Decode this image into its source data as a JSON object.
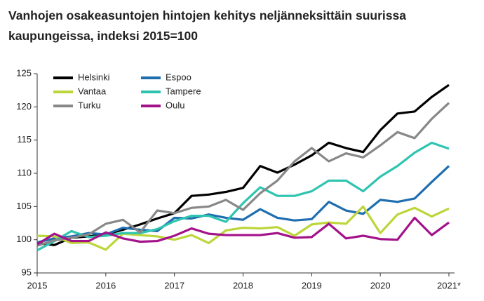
{
  "chart_data": {
    "type": "line",
    "title": "Vanhojen osakeasuntojen hintojen kehitys neljänneksittäin suurissa kaupungeissa, indeksi 2015=100",
    "categories": [
      "2015",
      null,
      null,
      null,
      "2016",
      null,
      null,
      null,
      "2017",
      null,
      null,
      null,
      "2018",
      null,
      null,
      null,
      "2019",
      null,
      null,
      null,
      "2020",
      null,
      null,
      null,
      "2021*"
    ],
    "ylim": [
      95,
      125
    ],
    "yticks": [
      95,
      100,
      105,
      110,
      115,
      120,
      125
    ],
    "grid": false,
    "legend": "upper-left",
    "series": [
      {
        "name": "Helsinki",
        "color": "#000000",
        "values": [
          99.5,
          99.2,
          100.3,
          100.5,
          100.8,
          101.5,
          102.3,
          103.2,
          104.0,
          106.6,
          106.8,
          107.2,
          107.8,
          111.1,
          110.1,
          111.3,
          112.7,
          114.6,
          113.8,
          113.2,
          116.5,
          119.0,
          119.3,
          121.5,
          123.3
        ]
      },
      {
        "name": "Espoo",
        "color": "#1f6eb0",
        "values": [
          99.6,
          100.2,
          100.5,
          101.0,
          100.8,
          101.8,
          101.5,
          101.3,
          103.3,
          103.2,
          103.8,
          103.3,
          103.0,
          104.6,
          103.3,
          102.9,
          103.1,
          105.7,
          104.4,
          103.9,
          106.0,
          105.7,
          106.2,
          108.7,
          111.1
        ]
      },
      {
        "name": "Vantaa",
        "color": "#bcd63a",
        "values": [
          100.6,
          100.5,
          99.5,
          99.6,
          98.5,
          100.9,
          100.7,
          100.5,
          100.0,
          100.7,
          99.5,
          101.4,
          101.8,
          101.7,
          101.9,
          100.6,
          102.3,
          102.6,
          102.4,
          105.0,
          101.0,
          103.8,
          104.8,
          103.5,
          104.7
        ]
      },
      {
        "name": "Tampere",
        "color": "#2ec4b0",
        "values": [
          98.4,
          99.8,
          101.3,
          100.4,
          100.6,
          101.0,
          101.0,
          101.6,
          102.8,
          103.6,
          103.6,
          102.7,
          105.5,
          107.9,
          106.6,
          106.6,
          107.3,
          108.9,
          108.9,
          107.3,
          109.5,
          111.1,
          113.1,
          114.6,
          113.7
        ]
      },
      {
        "name": "Turku",
        "color": "#888888",
        "values": [
          99.1,
          99.9,
          100.3,
          100.8,
          102.4,
          103.0,
          101.1,
          104.4,
          104.0,
          104.8,
          105.0,
          106.0,
          104.5,
          107.0,
          108.9,
          111.8,
          113.8,
          111.8,
          113.0,
          112.4,
          114.2,
          116.2,
          115.3,
          118.2,
          120.6
        ]
      },
      {
        "name": "Oulu",
        "color": "#a4128a",
        "values": [
          99.3,
          100.9,
          99.8,
          99.8,
          101.1,
          100.2,
          99.7,
          99.8,
          100.6,
          101.7,
          100.9,
          100.7,
          100.7,
          100.7,
          101.0,
          100.3,
          100.4,
          102.4,
          100.2,
          100.6,
          100.1,
          100.0,
          103.3,
          100.7,
          102.6
        ]
      }
    ]
  }
}
